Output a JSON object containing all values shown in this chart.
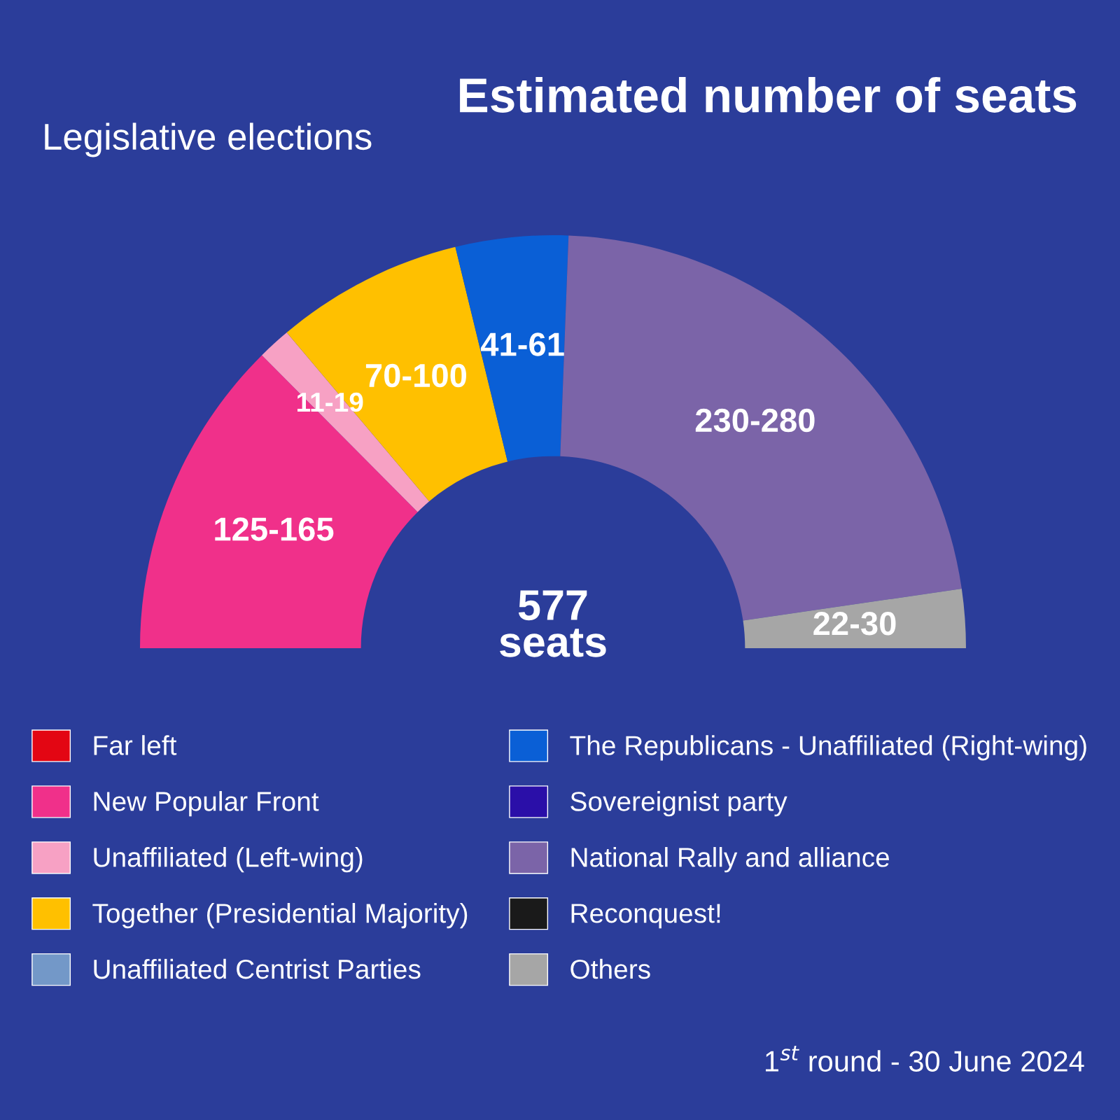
{
  "chart_data": {
    "type": "donut",
    "title": "Estimated number of seats",
    "subtitle": "Legislative elections",
    "categories": [
      "Far left",
      "New Popular Front",
      "Unaffiliated (Left-wing)",
      "Together (Presidential Majority)",
      "Unaffiliated Centrist Parties",
      "The Republicans - Unaffiliated (Right-wing)",
      "Sovereignist party",
      "National Rally and alliance",
      "Reconquest!",
      "Others"
    ],
    "values": [
      0,
      25.1,
      2.6,
      14.7,
      0,
      8.8,
      0,
      44.2,
      0,
      4.6
    ],
    "value_labels": [
      null,
      "125-165",
      "11-19",
      "70-100",
      null,
      "41-61",
      null,
      "230-280",
      null,
      "22-30"
    ],
    "colors": [
      "#e30613",
      "#f0308a",
      "#f7a1c4",
      "#ffc000",
      "#7398c8",
      "#0a5fd6",
      "#2a0fa8",
      "#7b64a8",
      "#1a1a1a",
      "#a6a6a6"
    ],
    "annotations": [
      "577\nseats",
      "1$^{st}$ round - 30 June 2024"
    ],
    "legend": "bottom"
  }
}
